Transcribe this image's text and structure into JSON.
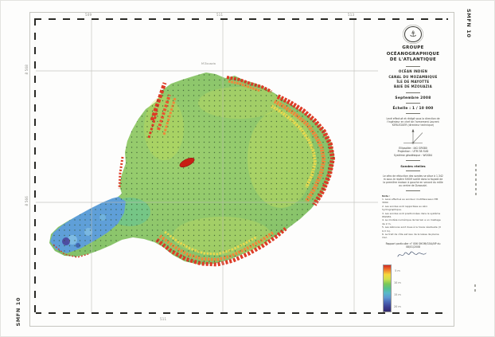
{
  "sheet": {
    "code": "SMFN 10"
  },
  "margin": {
    "top_right_code": "SMFN 10",
    "bottom_left_code": "SMFN 10"
  },
  "graticule": {
    "top_labels": [
      "509",
      "511",
      "513"
    ],
    "left_labels": [
      "8 568",
      "8 566"
    ],
    "bottom_label": "511"
  },
  "map": {
    "place_label": "M'Zouazia",
    "feature_colors": {
      "shallow_red": "#d8392a",
      "mid_green": "#8cc674",
      "deep_blue": "#5f9fd8",
      "deepest_purple": "#4a3e98",
      "reef_patch": "#c81e14"
    }
  },
  "title_block": {
    "emblem_icon": "anchor",
    "org_line1": "GROUPE OCÉANOGRAPHIQUE",
    "org_line2": "DE L'ATLANTIQUE",
    "location_lines": [
      "OCÉAN INDIEN",
      "CANAL DU MOZAMBIQUE",
      "ÎLE DE MAYOTTE",
      "BAIE DE MZOUAZIA"
    ],
    "date": "Septembre 2008",
    "scale": "Échelle : 1 / 10 000",
    "direction_note": "Levé effectué et rédigé sous la direction de l'ingénieur en chef de l'armement Laurent KERLEGUER (directeur technique)",
    "geodesy_lines": [
      "Ellipsoïde : IAG GRS80",
      "Projection : UTM 38 SUD",
      "Système géodésique : WGS84"
    ],
    "soundings_line": "Sondes réelles",
    "zero_note": "Le zéro de réduction des sondes se situe à 1,342 m sous le repère SHOM scellé dans la façade de la première maison à gauche en venant du môle au centre de Dzaoudzi.",
    "nota_title": "Nota :",
    "notes": [
      "1. Levé effectué au sondeur multifaisceaux EM 3002.",
      "2. Les sondes sont rapportées au zéro hydrographique.",
      "3. Les sondes sont positionnées dans le système WGS84.",
      "4. Le modèle numérique de terrain a un maillage de 2 m.",
      "5. Les zébrures sont dues à la houle résiduelle (± 0,3 m).",
      "6. Le trait de côte est issu de la laisse de pleine mer."
    ],
    "report_line": "Rapport particulier n° 006 SHOM/GOA/NP du 08/01/2008"
  },
  "legend": {
    "colors": [
      "#d42b22",
      "#f07c2e",
      "#f5d93e",
      "#cfe04e",
      "#7cc857",
      "#55c18c",
      "#58b9c9",
      "#5e97d2",
      "#4a66b5",
      "#3c3f92",
      "#332a6e"
    ],
    "tick_labels": [
      "5 m",
      "10 m",
      "15 m",
      "20 m"
    ]
  }
}
